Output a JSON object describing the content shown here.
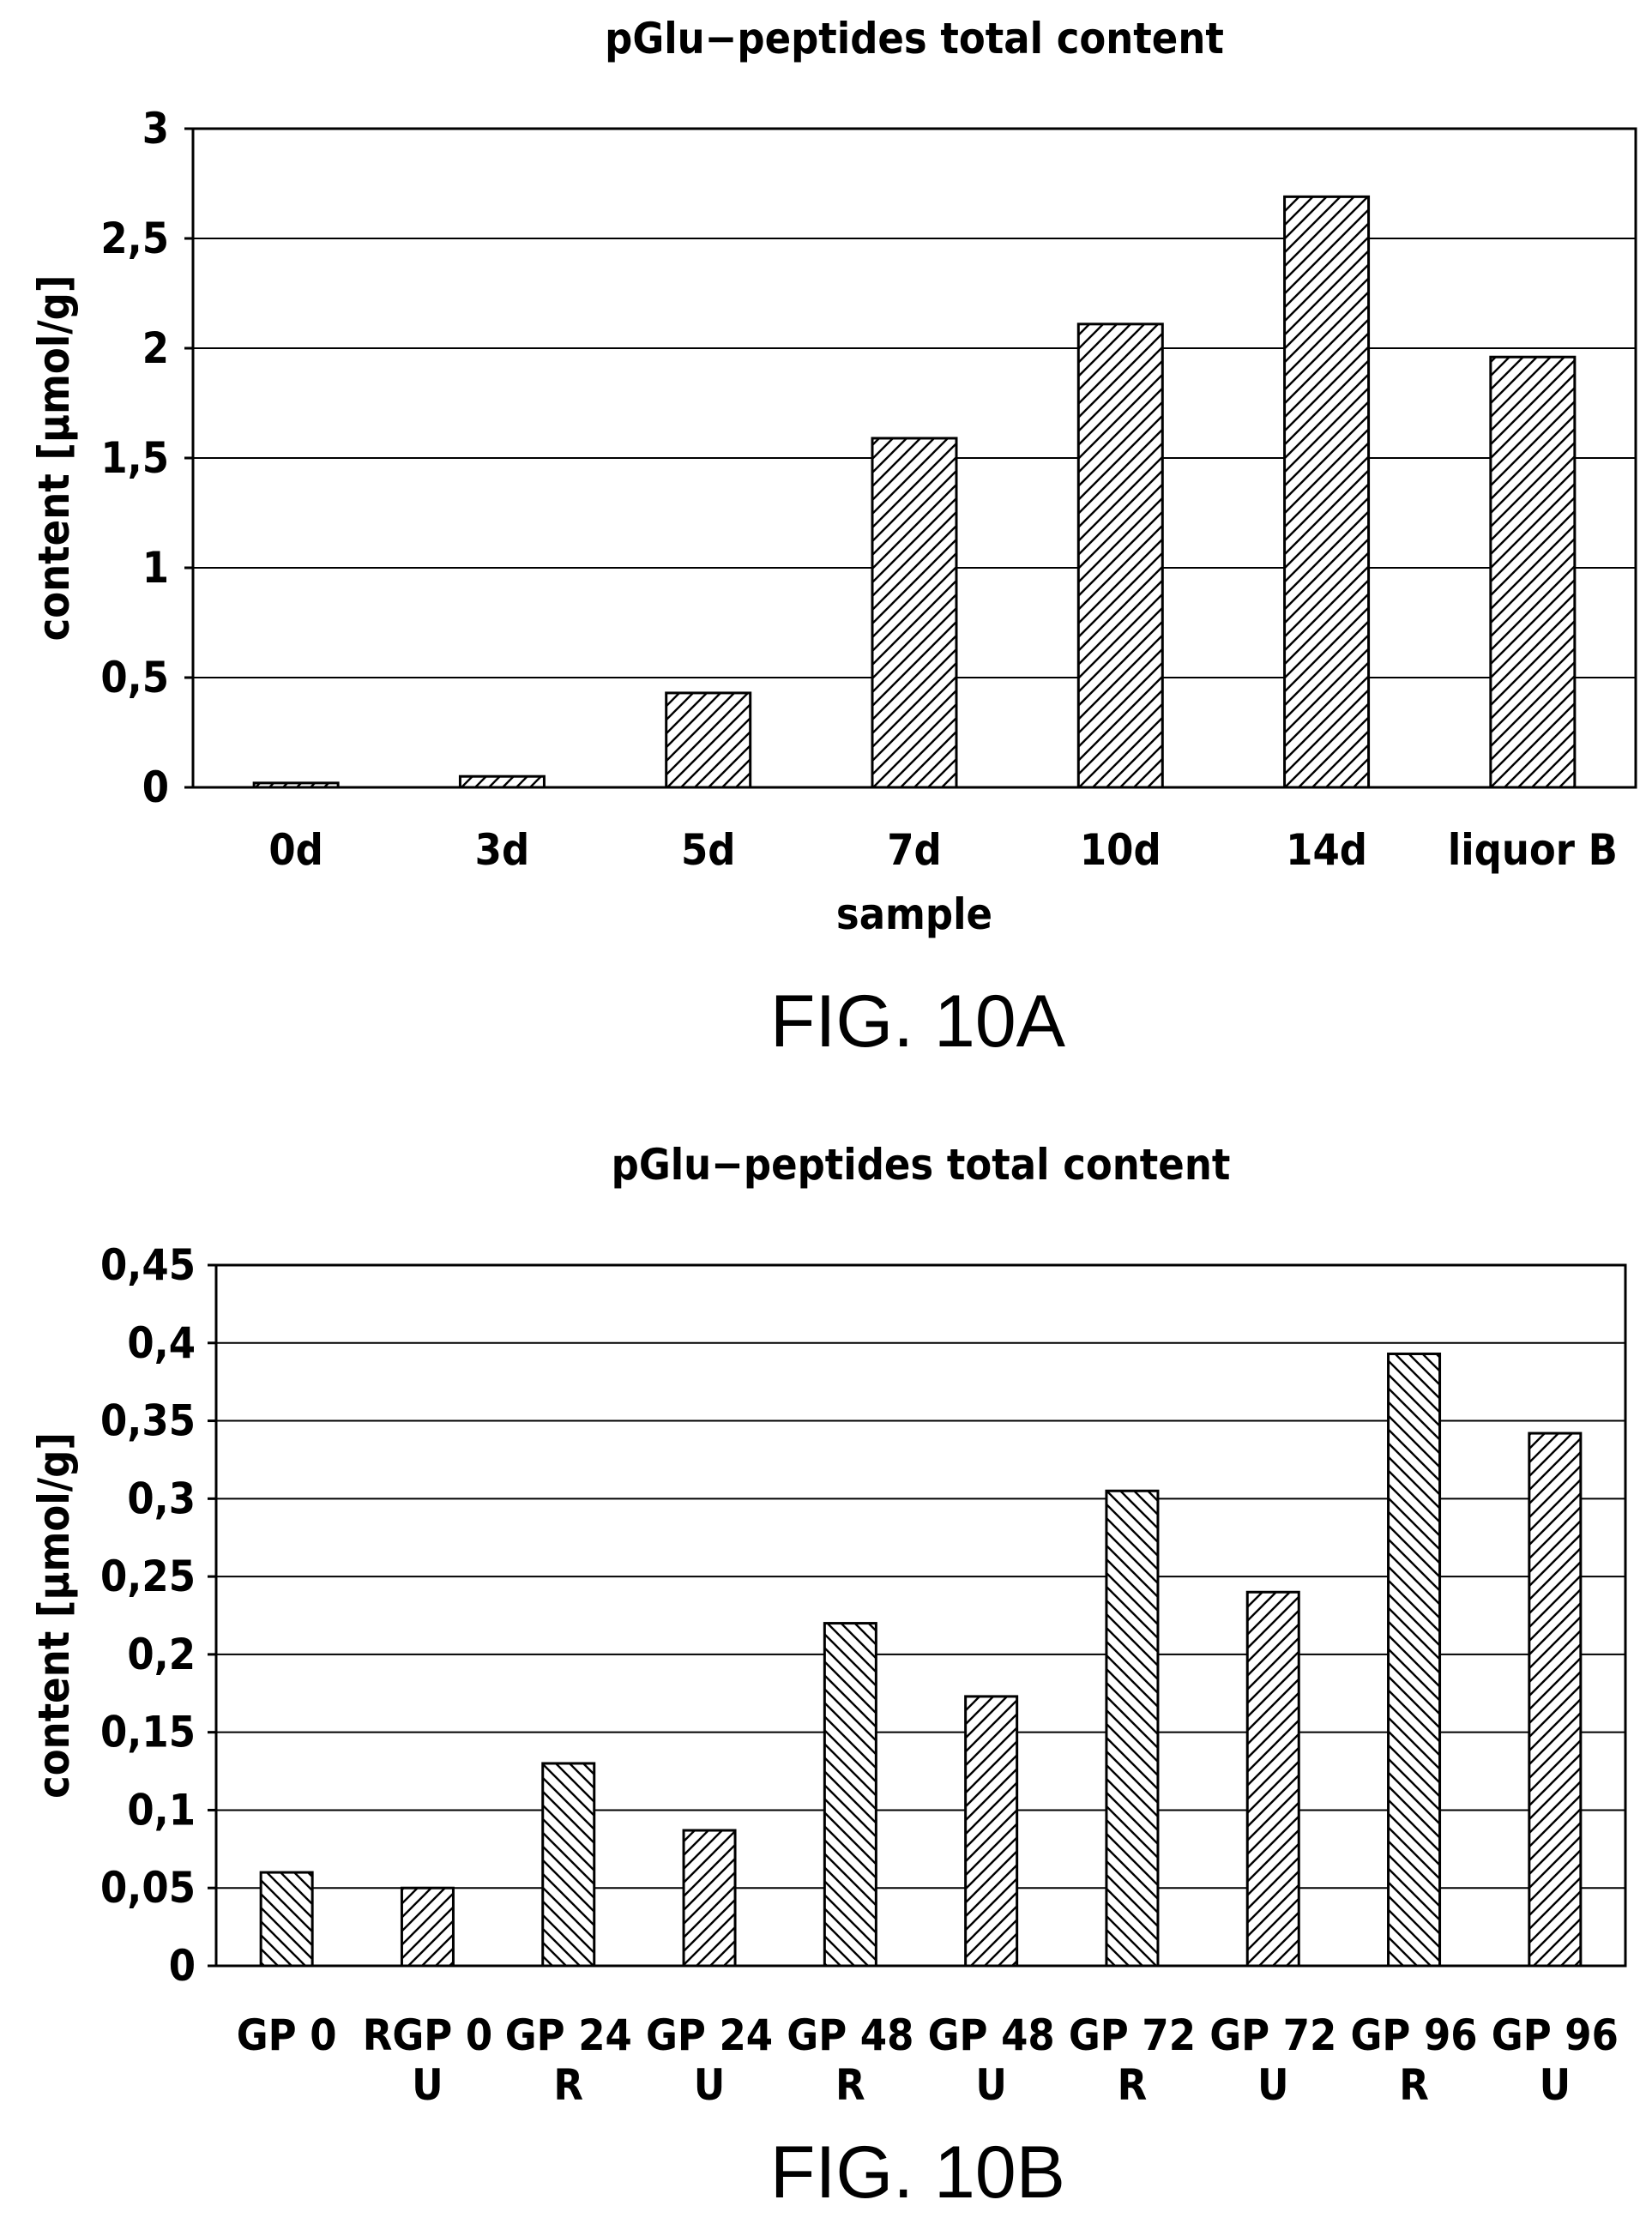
{
  "figures": [
    {
      "caption": "FIG. 10A",
      "chart_data": {
        "type": "bar",
        "title": "pGlu−peptides  total  content",
        "xlabel": "sample",
        "ylabel": "content [μmol/g]",
        "ylim": [
          0,
          3
        ],
        "yticks": [
          "0",
          "0,5",
          "1",
          "1,5",
          "2",
          "2,5",
          "3"
        ],
        "categories": [
          [
            "0d"
          ],
          [
            "3d"
          ],
          [
            "5d"
          ],
          [
            "7d"
          ],
          [
            "10d"
          ],
          [
            "14d"
          ],
          [
            "liquor  B"
          ]
        ],
        "values": [
          0.02,
          0.05,
          0.43,
          1.59,
          2.11,
          2.69,
          1.96
        ],
        "patterns": [
          "diagF",
          "diagF",
          "diagF",
          "diagF",
          "diagF",
          "diagF",
          "diagF"
        ],
        "grid": true,
        "legend": "none"
      }
    },
    {
      "caption": "FIG. 10B",
      "chart_data": {
        "type": "bar",
        "title": "pGlu−peptides  total  content",
        "xlabel": "",
        "ylabel": "content [μmol/g]",
        "ylim": [
          0,
          0.45
        ],
        "yticks": [
          "0",
          "0,05",
          "0,1",
          "0,15",
          "0,2",
          "0,25",
          "0,3",
          "0,35",
          "0,4",
          "0,45"
        ],
        "categories": [
          [
            "GP  0"
          ],
          [
            "RGP  0",
            "U"
          ],
          [
            "GP  24",
            "R"
          ],
          [
            "GP  24",
            "U"
          ],
          [
            "GP  48",
            "R"
          ],
          [
            "GP  48",
            "U"
          ],
          [
            "GP  72",
            "R"
          ],
          [
            "GP  72",
            "U"
          ],
          [
            "GP  96",
            "R"
          ],
          [
            "GP  96",
            "U"
          ]
        ],
        "values": [
          0.06,
          0.05,
          0.13,
          0.087,
          0.22,
          0.173,
          0.305,
          0.24,
          0.393,
          0.342
        ],
        "patterns": [
          "diagB",
          "diagF",
          "diagB",
          "diagF",
          "diagB",
          "diagF",
          "diagB",
          "diagF",
          "diagB",
          "diagF"
        ],
        "grid": true,
        "legend": "none"
      }
    }
  ]
}
